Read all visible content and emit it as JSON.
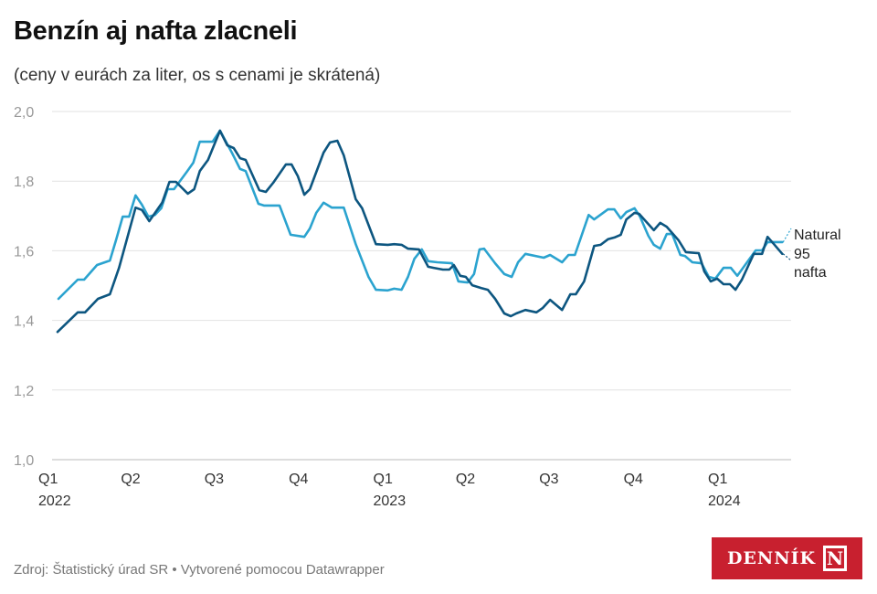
{
  "title": "Benzín aj nafta zlacneli",
  "subtitle": "(ceny v eurách za liter, os s cenami je skrátená)",
  "footer": "Zdroj: Štatistický úrad SR • Vytvorené pomocou Datawrapper",
  "logo": {
    "text": "DENNÍK N"
  },
  "chart_data": {
    "type": "line",
    "ylim": [
      1.0,
      2.0
    ],
    "yticks": [
      "2,0",
      "1,8",
      "1,6",
      "1,4",
      "1,2",
      "1,0"
    ],
    "ytick_values": [
      2.0,
      1.8,
      1.6,
      1.4,
      1.2,
      1.0
    ],
    "xticks": [
      {
        "date": "2022-01-01",
        "label": "Q1",
        "year": "2022"
      },
      {
        "date": "2022-04-01",
        "label": "Q2",
        "year": ""
      },
      {
        "date": "2022-07-01",
        "label": "Q3",
        "year": ""
      },
      {
        "date": "2022-10-01",
        "label": "Q4",
        "year": ""
      },
      {
        "date": "2023-01-01",
        "label": "Q1",
        "year": "2023"
      },
      {
        "date": "2023-04-01",
        "label": "Q2",
        "year": ""
      },
      {
        "date": "2023-07-01",
        "label": "Q3",
        "year": ""
      },
      {
        "date": "2023-10-01",
        "label": "Q4",
        "year": ""
      },
      {
        "date": "2024-01-01",
        "label": "Q1",
        "year": "2024"
      }
    ],
    "grid": true,
    "legend": "inline-right",
    "series": [
      {
        "name": "Natural 95",
        "label_lines": [
          "Natural",
          "95"
        ],
        "color": "#2ba3cf",
        "points": [
          [
            "2022-01-08",
            1.462
          ],
          [
            "2022-01-29",
            1.517
          ],
          [
            "2022-02-05",
            1.517
          ],
          [
            "2022-02-19",
            1.559
          ],
          [
            "2022-03-05",
            1.572
          ],
          [
            "2022-03-12",
            1.633
          ],
          [
            "2022-03-19",
            1.698
          ],
          [
            "2022-03-26",
            1.698
          ],
          [
            "2022-04-02",
            1.759
          ],
          [
            "2022-04-09",
            1.732
          ],
          [
            "2022-04-16",
            1.698
          ],
          [
            "2022-04-23",
            1.703
          ],
          [
            "2022-04-30",
            1.722
          ],
          [
            "2022-05-07",
            1.777
          ],
          [
            "2022-05-14",
            1.777
          ],
          [
            "2022-05-28",
            1.827
          ],
          [
            "2022-06-04",
            1.853
          ],
          [
            "2022-06-11",
            1.913
          ],
          [
            "2022-06-25",
            1.913
          ],
          [
            "2022-07-03",
            1.945
          ],
          [
            "2022-07-16",
            1.882
          ],
          [
            "2022-07-25",
            1.835
          ],
          [
            "2022-07-31",
            1.829
          ],
          [
            "2022-08-14",
            1.735
          ],
          [
            "2022-08-20",
            1.73
          ],
          [
            "2022-09-06",
            1.73
          ],
          [
            "2022-09-18",
            1.646
          ],
          [
            "2022-10-03",
            1.64
          ],
          [
            "2022-10-09",
            1.664
          ],
          [
            "2022-10-16",
            1.709
          ],
          [
            "2022-10-24",
            1.738
          ],
          [
            "2022-11-02",
            1.724
          ],
          [
            "2022-11-15",
            1.724
          ],
          [
            "2022-11-28",
            1.619
          ],
          [
            "2022-12-12",
            1.525
          ],
          [
            "2022-12-20",
            1.488
          ],
          [
            "2023-01-02",
            1.486
          ],
          [
            "2023-01-09",
            1.491
          ],
          [
            "2023-01-17",
            1.488
          ],
          [
            "2023-01-24",
            1.525
          ],
          [
            "2023-01-31",
            1.577
          ],
          [
            "2023-02-08",
            1.604
          ],
          [
            "2023-02-15",
            1.57
          ],
          [
            "2023-02-25",
            1.567
          ],
          [
            "2023-03-13",
            1.564
          ],
          [
            "2023-03-20",
            1.512
          ],
          [
            "2023-03-30",
            1.509
          ],
          [
            "2023-04-06",
            1.533
          ],
          [
            "2023-04-12",
            1.604
          ],
          [
            "2023-04-17",
            1.606
          ],
          [
            "2023-04-29",
            1.564
          ],
          [
            "2023-05-09",
            1.533
          ],
          [
            "2023-05-17",
            1.525
          ],
          [
            "2023-05-24",
            1.567
          ],
          [
            "2023-06-01",
            1.591
          ],
          [
            "2023-06-21",
            1.58
          ],
          [
            "2023-06-28",
            1.588
          ],
          [
            "2023-07-11",
            1.567
          ],
          [
            "2023-07-18",
            1.588
          ],
          [
            "2023-07-25",
            1.588
          ],
          [
            "2023-08-09",
            1.703
          ],
          [
            "2023-08-15",
            1.69
          ],
          [
            "2023-08-30",
            1.719
          ],
          [
            "2023-09-06",
            1.719
          ],
          [
            "2023-09-13",
            1.693
          ],
          [
            "2023-09-19",
            1.711
          ],
          [
            "2023-09-28",
            1.722
          ],
          [
            "2023-10-04",
            1.698
          ],
          [
            "2023-10-13",
            1.643
          ],
          [
            "2023-10-19",
            1.617
          ],
          [
            "2023-10-26",
            1.606
          ],
          [
            "2023-11-02",
            1.648
          ],
          [
            "2023-11-08",
            1.648
          ],
          [
            "2023-11-17",
            1.588
          ],
          [
            "2023-11-22",
            1.585
          ],
          [
            "2023-11-30",
            1.567
          ],
          [
            "2023-12-10",
            1.564
          ],
          [
            "2023-12-18",
            1.525
          ],
          [
            "2023-12-25",
            1.52
          ],
          [
            "2024-01-03",
            1.551
          ],
          [
            "2024-01-11",
            1.551
          ],
          [
            "2024-01-18",
            1.528
          ],
          [
            "2024-02-07",
            1.601
          ],
          [
            "2024-02-14",
            1.601
          ],
          [
            "2024-02-20",
            1.625
          ],
          [
            "2024-03-01",
            1.625
          ],
          [
            "2024-03-07",
            1.625
          ]
        ]
      },
      {
        "name": "nafta",
        "label_lines": [
          "nafta"
        ],
        "color": "#0d5680",
        "points": [
          [
            "2022-01-07",
            1.367
          ],
          [
            "2022-01-29",
            1.423
          ],
          [
            "2022-02-06",
            1.423
          ],
          [
            "2022-02-20",
            1.462
          ],
          [
            "2022-03-05",
            1.475
          ],
          [
            "2022-03-15",
            1.551
          ],
          [
            "2022-04-02",
            1.724
          ],
          [
            "2022-04-09",
            1.717
          ],
          [
            "2022-04-17",
            1.685
          ],
          [
            "2022-05-01",
            1.738
          ],
          [
            "2022-05-09",
            1.798
          ],
          [
            "2022-05-16",
            1.798
          ],
          [
            "2022-05-29",
            1.764
          ],
          [
            "2022-06-05",
            1.777
          ],
          [
            "2022-06-11",
            1.829
          ],
          [
            "2022-06-20",
            1.861
          ],
          [
            "2022-07-03",
            1.945
          ],
          [
            "2022-07-11",
            1.903
          ],
          [
            "2022-07-18",
            1.895
          ],
          [
            "2022-07-25",
            1.866
          ],
          [
            "2022-07-31",
            1.861
          ],
          [
            "2022-08-15",
            1.774
          ],
          [
            "2022-08-22",
            1.769
          ],
          [
            "2022-08-30",
            1.795
          ],
          [
            "2022-09-13",
            1.848
          ],
          [
            "2022-09-19",
            1.848
          ],
          [
            "2022-09-26",
            1.814
          ],
          [
            "2022-10-03",
            1.761
          ],
          [
            "2022-10-09",
            1.777
          ],
          [
            "2022-10-24",
            1.882
          ],
          [
            "2022-10-31",
            1.911
          ],
          [
            "2022-11-08",
            1.916
          ],
          [
            "2022-11-15",
            1.874
          ],
          [
            "2022-11-28",
            1.748
          ],
          [
            "2022-12-05",
            1.722
          ],
          [
            "2022-12-20",
            1.619
          ],
          [
            "2023-01-02",
            1.617
          ],
          [
            "2023-01-09",
            1.619
          ],
          [
            "2023-01-17",
            1.617
          ],
          [
            "2023-01-24",
            1.606
          ],
          [
            "2023-02-05",
            1.604
          ],
          [
            "2023-02-15",
            1.554
          ],
          [
            "2023-02-21",
            1.551
          ],
          [
            "2023-03-03",
            1.546
          ],
          [
            "2023-03-10",
            1.546
          ],
          [
            "2023-03-15",
            1.559
          ],
          [
            "2023-03-22",
            1.528
          ],
          [
            "2023-03-28",
            1.525
          ],
          [
            "2023-04-04",
            1.501
          ],
          [
            "2023-04-14",
            1.493
          ],
          [
            "2023-04-21",
            1.488
          ],
          [
            "2023-04-29",
            1.462
          ],
          [
            "2023-05-09",
            1.42
          ],
          [
            "2023-05-16",
            1.412
          ],
          [
            "2023-05-22",
            1.42
          ],
          [
            "2023-06-01",
            1.43
          ],
          [
            "2023-06-13",
            1.423
          ],
          [
            "2023-06-20",
            1.436
          ],
          [
            "2023-06-28",
            1.459
          ],
          [
            "2023-07-11",
            1.43
          ],
          [
            "2023-07-20",
            1.475
          ],
          [
            "2023-07-26",
            1.475
          ],
          [
            "2023-08-04",
            1.512
          ],
          [
            "2023-08-15",
            1.614
          ],
          [
            "2023-08-22",
            1.617
          ],
          [
            "2023-08-30",
            1.633
          ],
          [
            "2023-09-06",
            1.638
          ],
          [
            "2023-09-13",
            1.646
          ],
          [
            "2023-09-19",
            1.69
          ],
          [
            "2023-09-28",
            1.709
          ],
          [
            "2023-10-03",
            1.706
          ],
          [
            "2023-10-19",
            1.659
          ],
          [
            "2023-10-26",
            1.68
          ],
          [
            "2023-11-02",
            1.669
          ],
          [
            "2023-11-15",
            1.63
          ],
          [
            "2023-11-23",
            1.596
          ],
          [
            "2023-12-07",
            1.593
          ],
          [
            "2023-12-13",
            1.541
          ],
          [
            "2023-12-20",
            1.512
          ],
          [
            "2023-12-27",
            1.52
          ],
          [
            "2024-01-03",
            1.504
          ],
          [
            "2024-01-10",
            1.504
          ],
          [
            "2024-01-16",
            1.488
          ],
          [
            "2024-01-23",
            1.517
          ],
          [
            "2024-02-05",
            1.591
          ],
          [
            "2024-02-14",
            1.591
          ],
          [
            "2024-02-20",
            1.64
          ],
          [
            "2024-02-27",
            1.619
          ],
          [
            "2024-03-07",
            1.591
          ]
        ]
      }
    ]
  }
}
